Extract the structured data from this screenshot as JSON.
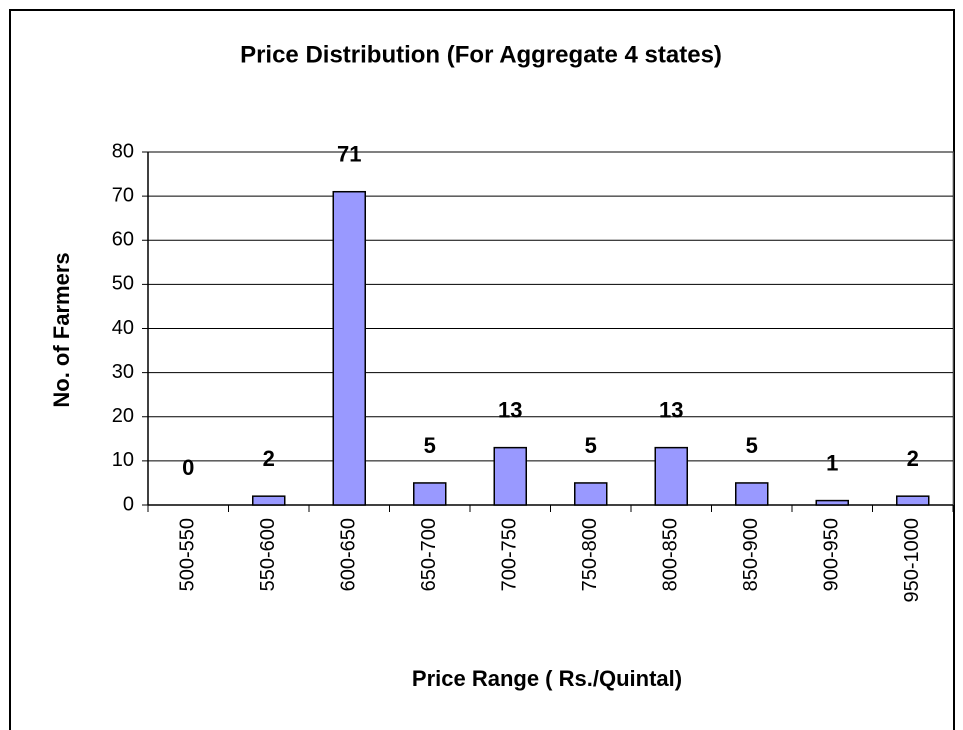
{
  "chart_data": {
    "type": "bar",
    "title": "Price Distribution (For Aggregate 4 states)",
    "x_label": "Price Range ( Rs./Quintal)",
    "y_label": "No. of Farmers",
    "categories": [
      "500-550",
      "550-600",
      "600-650",
      "650-700",
      "700-750",
      "750-800",
      "800-850",
      "850-900",
      "900-950",
      "950-1000"
    ],
    "values": [
      0,
      2,
      71,
      5,
      13,
      5,
      13,
      5,
      1,
      2
    ],
    "color": "#9999ff",
    "ylim": [
      0,
      80
    ],
    "yticks": [
      0,
      10,
      20,
      30,
      40,
      50,
      60,
      70,
      80
    ],
    "grid": true
  }
}
